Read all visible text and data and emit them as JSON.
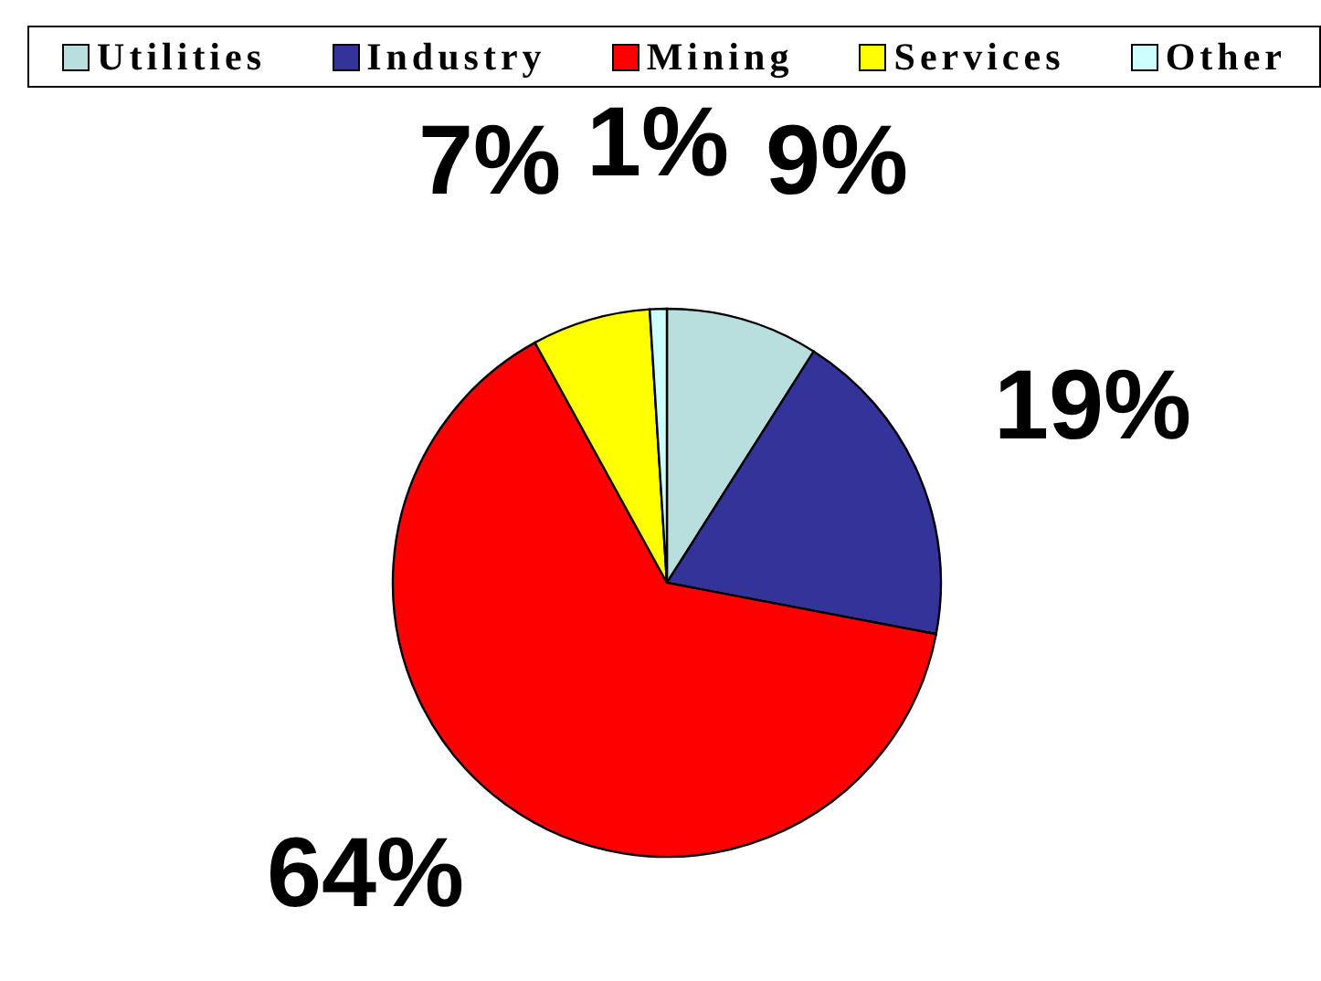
{
  "chart_data": {
    "type": "pie",
    "categories": [
      "Utilities",
      "Industry",
      "Mining",
      "Services",
      "Other"
    ],
    "values": [
      9,
      19,
      64,
      7,
      1
    ],
    "colors": [
      "#b8dede",
      "#333399",
      "#ff0000",
      "#ffff00",
      "#ccffff"
    ],
    "value_labels": [
      "9%",
      "19%",
      "64%",
      "7%",
      "1%"
    ],
    "legend": "top"
  }
}
